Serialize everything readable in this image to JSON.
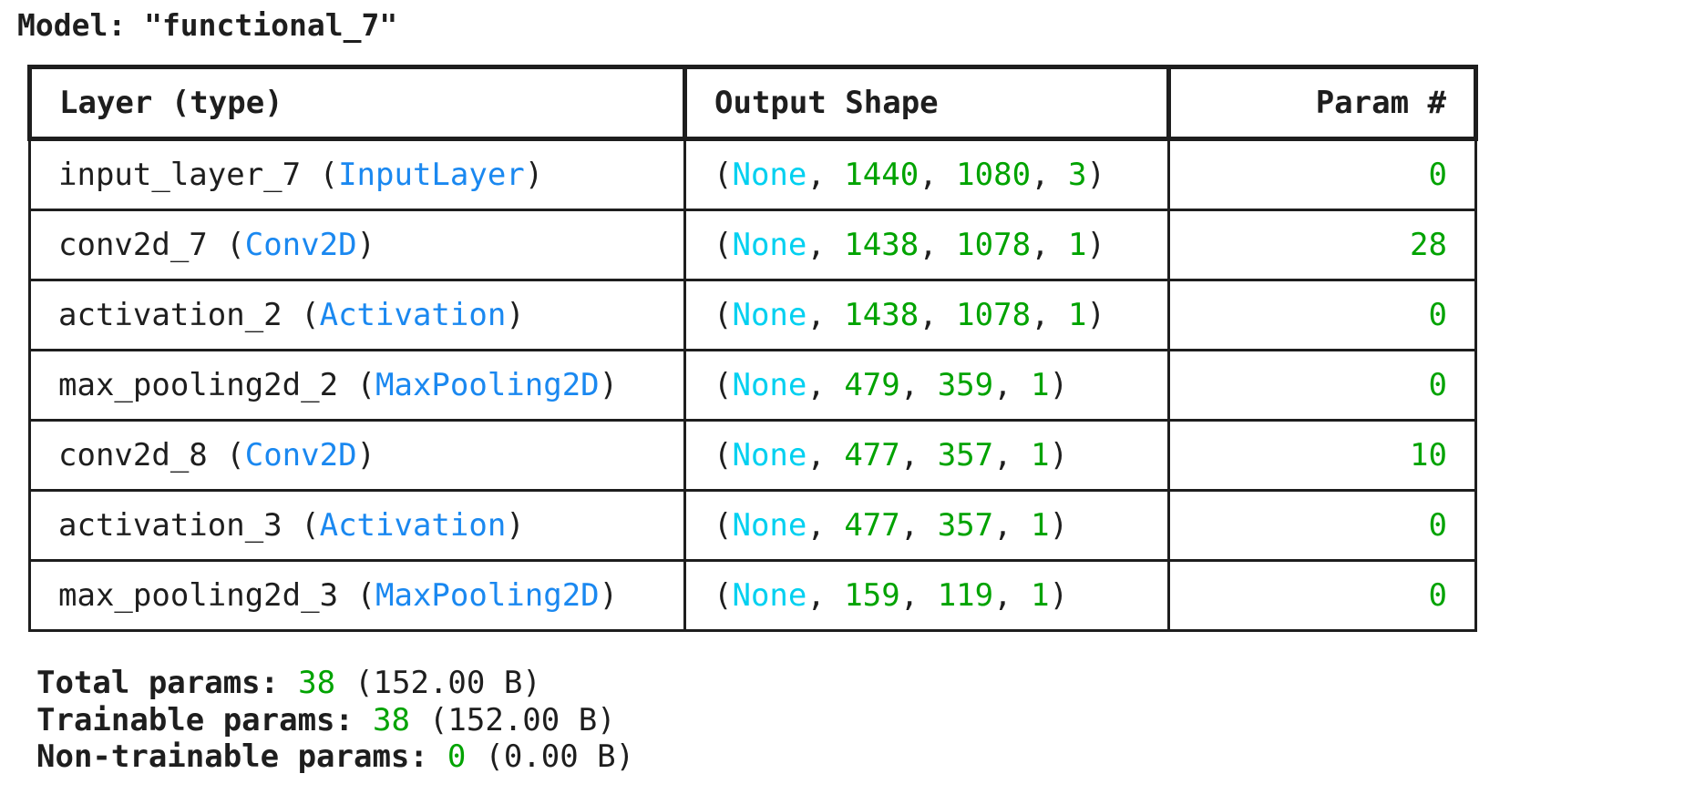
{
  "title": "Model: \"functional_7\"",
  "table": {
    "headers": [
      "Layer (type)",
      "Output Shape",
      "Param #"
    ],
    "rows": [
      {
        "layer": "input_layer_7 (InputLayer)",
        "shape": "(None, 1440, 1080, 3)",
        "params": 0
      },
      {
        "layer": "conv2d_7 (Conv2D)",
        "shape": "(None, 1438, 1078, 1)",
        "params": 28
      },
      {
        "layer": "activation_2 (Activation)",
        "shape": "(None, 1438, 1078, 1)",
        "params": 0
      },
      {
        "layer": "max_pooling2d_2 (MaxPooling2D)",
        "shape": "(None, 479, 359, 1)",
        "params": 0
      },
      {
        "layer": "conv2d_8 (Conv2D)",
        "shape": "(None, 477, 357, 1)",
        "params": 10
      },
      {
        "layer": "activation_3 (Activation)",
        "shape": "(None, 477, 357, 1)",
        "params": 0
      },
      {
        "layer": "max_pooling2d_3 (MaxPooling2D)",
        "shape": "(None, 159, 119, 1)",
        "params": 0
      }
    ]
  },
  "summary": [
    {
      "label": "Total params:",
      "value": 38,
      "size": "(152.00 B)"
    },
    {
      "label": "Trainable params:",
      "value": 38,
      "size": "(152.00 B)"
    },
    {
      "label": "Non-trainable params:",
      "value": 0,
      "size": "(0.00 B)"
    }
  ]
}
